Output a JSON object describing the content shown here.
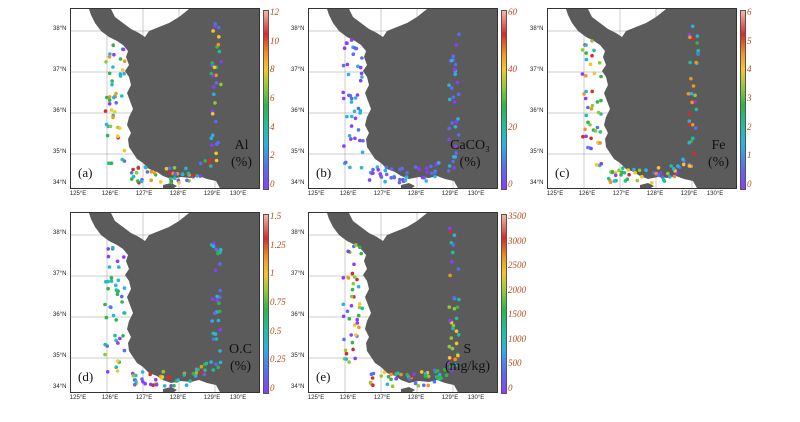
{
  "axes": {
    "lat_ticks": [
      "38°N",
      "37°N",
      "36°N",
      "35°N",
      "34°N"
    ],
    "lon_ticks": [
      "125°E",
      "126°E",
      "127°E",
      "128°E",
      "129°E",
      "130°E"
    ]
  },
  "colors": {
    "land": "#5b5b5b",
    "grid": "#9a9a9a",
    "cb_tick": "#b8481a"
  },
  "panels": [
    {
      "letter": "(a)",
      "var_line1": "Al",
      "var_line2": "(%)",
      "cb_ticks": [
        "12",
        "10",
        "8",
        "6",
        "4",
        "2",
        "0"
      ]
    },
    {
      "letter": "(b)",
      "var_line1": "CaCO₃",
      "var_line2": "(%)",
      "cb_ticks": [
        "60",
        "40",
        "20",
        "0"
      ]
    },
    {
      "letter": "(c)",
      "var_line1": "Fe",
      "var_line2": "(%)",
      "cb_ticks": [
        "6",
        "5",
        "4",
        "3",
        "2",
        "1",
        "0"
      ]
    },
    {
      "letter": "(d)",
      "var_line1": "O.C",
      "var_line2": "(%)",
      "cb_ticks": [
        "1.5",
        "1.25",
        "1",
        "0.75",
        "0.5",
        "0.25",
        "0"
      ]
    },
    {
      "letter": "(e)",
      "var_line1": "S",
      "var_line2": "(mg/kg)",
      "cb_ticks": [
        "3500",
        "3000",
        "2500",
        "2000",
        "1500",
        "1000",
        "500",
        "0"
      ]
    }
  ]
}
